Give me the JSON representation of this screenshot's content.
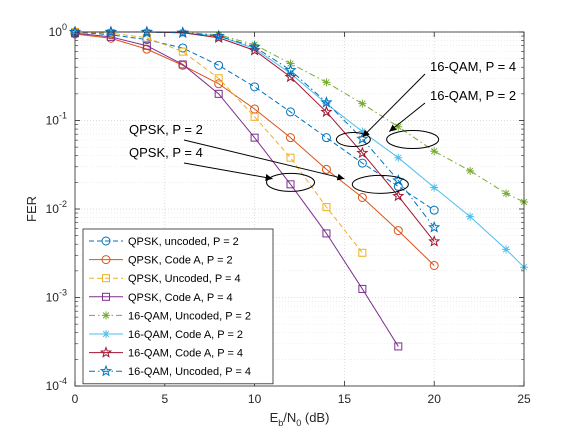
{
  "chart_data": {
    "type": "line",
    "title": "",
    "xlabel_main": "E",
    "xlabel_sub": "b",
    "xlabel_mid": "/N",
    "xlabel_sub2": "0",
    "xlabel_tail": " (dB)",
    "ylabel": "FER",
    "xlim": [
      0,
      25
    ],
    "ylim": [
      0.0001,
      1
    ],
    "yscale": "log",
    "grid": true,
    "legend_placement": "bottom-left",
    "xticks": [
      0,
      5,
      10,
      15,
      20,
      25
    ],
    "yticks": [
      {
        "value": 1,
        "mant": "10",
        "exp": "0"
      },
      {
        "value": 0.1,
        "mant": "10",
        "exp": "-1"
      },
      {
        "value": 0.01,
        "mant": "10",
        "exp": "-2"
      },
      {
        "value": 0.001,
        "mant": "10",
        "exp": "-3"
      },
      {
        "value": 0.0001,
        "mant": "10",
        "exp": "-4"
      }
    ],
    "series": [
      {
        "name": "QPSK, uncoded, P = 2",
        "color": "#0072BD",
        "dash": "dashed",
        "marker": "circle",
        "x": [
          0,
          2,
          4,
          6,
          8,
          10,
          12,
          14,
          16,
          18,
          20
        ],
        "y": [
          1.0,
          0.93,
          0.82,
          0.66,
          0.42,
          0.24,
          0.125,
          0.064,
          0.033,
          0.018,
          0.0097
        ]
      },
      {
        "name": "QPSK, Code A, P = 2",
        "color": "#D95319",
        "dash": "solid",
        "marker": "circle",
        "x": [
          0,
          2,
          4,
          6,
          8,
          10,
          12,
          14,
          16,
          18,
          20
        ],
        "y": [
          0.95,
          0.85,
          0.64,
          0.42,
          0.26,
          0.135,
          0.064,
          0.028,
          0.0135,
          0.0057,
          0.0023
        ]
      },
      {
        "name": "QPSK, Uncoded, P = 4",
        "color": "#EDB120",
        "dash": "dashed",
        "marker": "square",
        "x": [
          0,
          2,
          4,
          6,
          8,
          10,
          12,
          14,
          16
        ],
        "y": [
          1.0,
          0.97,
          0.86,
          0.6,
          0.3,
          0.11,
          0.038,
          0.0105,
          0.0032
        ]
      },
      {
        "name": "QPSK, Code A, P = 4",
        "color": "#7E2F8E",
        "dash": "solid",
        "marker": "square",
        "x": [
          0,
          2,
          4,
          6,
          8,
          10,
          12,
          14,
          16,
          18
        ],
        "y": [
          0.97,
          0.88,
          0.7,
          0.43,
          0.2,
          0.064,
          0.019,
          0.0053,
          0.00125,
          0.00028
        ]
      },
      {
        "name": "16-QAM, Uncoded, P = 2",
        "color": "#77AC30",
        "dash": "dashdot",
        "marker": "asterisk",
        "x": [
          0,
          2,
          4,
          6,
          8,
          10,
          12,
          14,
          16,
          18,
          20,
          22,
          24,
          25
        ],
        "y": [
          1.0,
          1.0,
          1.0,
          0.99,
          0.93,
          0.72,
          0.44,
          0.27,
          0.155,
          0.085,
          0.045,
          0.027,
          0.015,
          0.012
        ]
      },
      {
        "name": "16-QAM, Code A, P = 2",
        "color": "#4DBEEE",
        "dash": "solid",
        "marker": "asterisk",
        "x": [
          0,
          2,
          4,
          6,
          8,
          10,
          12,
          14,
          16,
          18,
          20,
          22,
          24,
          25
        ],
        "y": [
          1.0,
          1.0,
          1.0,
          0.98,
          0.9,
          0.65,
          0.34,
          0.155,
          0.075,
          0.038,
          0.0175,
          0.0082,
          0.0035,
          0.0022
        ]
      },
      {
        "name": "16-QAM, Code A, P = 4",
        "color": "#A2142F",
        "dash": "solid",
        "marker": "star",
        "x": [
          0,
          2,
          4,
          6,
          8,
          10,
          12,
          14,
          16,
          18,
          20
        ],
        "y": [
          1.0,
          1.0,
          1.0,
          0.98,
          0.86,
          0.62,
          0.31,
          0.125,
          0.043,
          0.014,
          0.0043
        ]
      },
      {
        "name": "16-QAM, Uncoded, P = 4",
        "color": "#0072BD",
        "dash": "dashdot",
        "marker": "star",
        "x": [
          0,
          2,
          4,
          6,
          8,
          10,
          12,
          14,
          16,
          18,
          20
        ],
        "y": [
          1.0,
          1.0,
          1.0,
          0.98,
          0.9,
          0.68,
          0.37,
          0.16,
          0.062,
          0.021,
          0.0062
        ]
      }
    ],
    "annotations": [
      {
        "text": "16-QAM, P = 4",
        "ellipse_center": [
          15.5,
          0.061
        ],
        "arrow_tip": [
          16,
          0.065
        ]
      },
      {
        "text": "16-QAM, P = 2",
        "ellipse_center": [
          18.8,
          0.061
        ],
        "arrow_tip": [
          17.5,
          0.075
        ]
      },
      {
        "text": "QPSK, P = 2",
        "ellipse_center": [
          17.0,
          0.019
        ],
        "arrow_tip": [
          15.0,
          0.022
        ]
      },
      {
        "text": "QPSK, P = 4",
        "ellipse_center": [
          12.0,
          0.02
        ],
        "arrow_tip": [
          11.0,
          0.022
        ]
      }
    ]
  }
}
